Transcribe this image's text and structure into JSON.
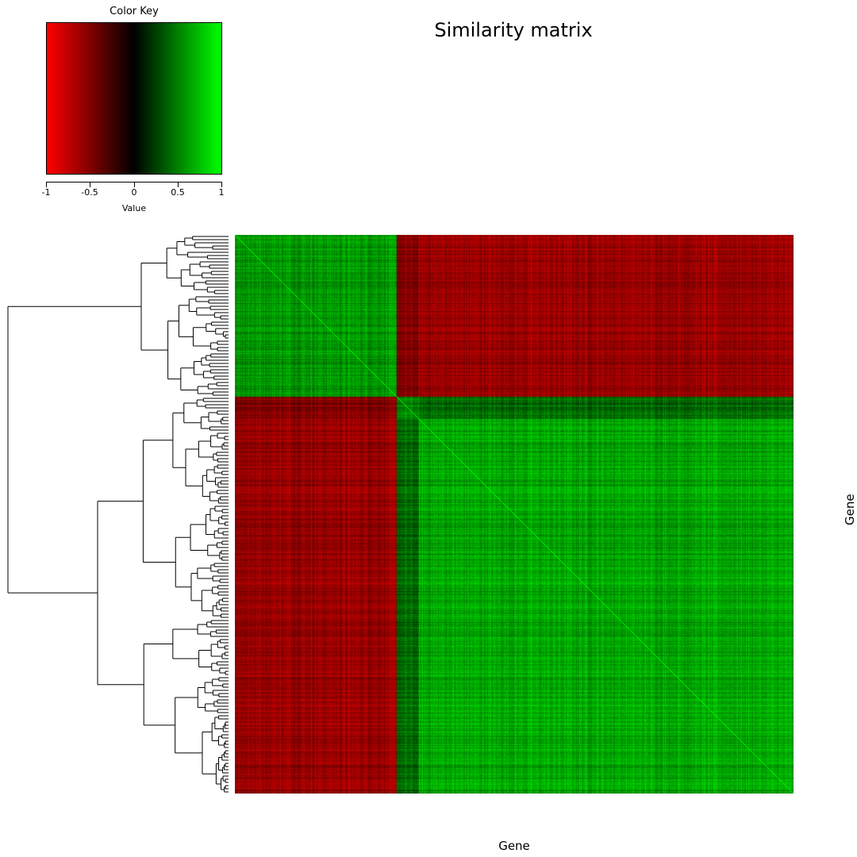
{
  "chart_data": {
    "type": "heatmap",
    "title": "Similarity matrix",
    "xlabel": "Gene",
    "ylabel": "Gene",
    "value_range": [
      -1,
      1
    ],
    "colors": {
      "low": "#ff0000",
      "mid": "#000000",
      "high": "#00ff00"
    },
    "color_key": {
      "title": "Color Key",
      "xlabel": "Value",
      "ticks": [
        -1,
        -0.5,
        0,
        0.5,
        1
      ],
      "tick_labels": [
        "-1",
        "-0.5",
        "0",
        "0.5",
        "1"
      ]
    },
    "cluster_blocks_fraction": [
      0.29,
      0.33,
      1.0
    ],
    "block_similarity": [
      [
        0.6,
        -0.5,
        -0.6
      ],
      [
        -0.5,
        0.5,
        0.4
      ],
      [
        -0.6,
        0.4,
        0.65
      ]
    ],
    "dendrogram": "row",
    "legend_position": "top-left"
  }
}
